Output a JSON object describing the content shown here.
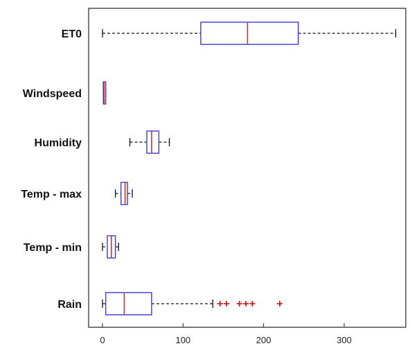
{
  "chart_data": {
    "type": "boxplot",
    "orientation": "horizontal",
    "title": "",
    "xlabel": "",
    "ylabel": "",
    "xlim": [
      -20,
      385
    ],
    "x_ticks": [
      0,
      100,
      200,
      300
    ],
    "x_tick_labels": [
      "0",
      "100",
      "200",
      "300"
    ],
    "grid": false,
    "legend": "none",
    "colors": {
      "box": "#3a3ad6",
      "median": "#d23030",
      "whisker": "#111111",
      "outlier": "#d41e1e"
    },
    "categories": [
      "ET0",
      "Windspeed",
      "Humidity",
      "Temp - max",
      "Temp - min",
      "Rain"
    ],
    "boxes": [
      {
        "label": "ET0",
        "min": 0,
        "q1": 122,
        "median": 180,
        "q3": 243,
        "max": 364,
        "outliers": []
      },
      {
        "label": "Windspeed",
        "min": 1,
        "q1": 1,
        "median": 2,
        "q3": 4,
        "max": 4,
        "outliers": []
      },
      {
        "label": "Humidity",
        "min": 34,
        "q1": 55,
        "median": 61,
        "q3": 70,
        "max": 83,
        "outliers": []
      },
      {
        "label": "Temp - max",
        "min": 16,
        "q1": 23,
        "median": 28,
        "q3": 31,
        "max": 37,
        "outliers": []
      },
      {
        "label": "Temp - min",
        "min": 0,
        "q1": 6,
        "median": 11,
        "q3": 16,
        "max": 20,
        "outliers": []
      },
      {
        "label": "Rain",
        "min": 0,
        "q1": 4,
        "median": 27,
        "q3": 61,
        "max": 137,
        "outliers": [
          146,
          154,
          170,
          178,
          186,
          220
        ]
      }
    ]
  }
}
